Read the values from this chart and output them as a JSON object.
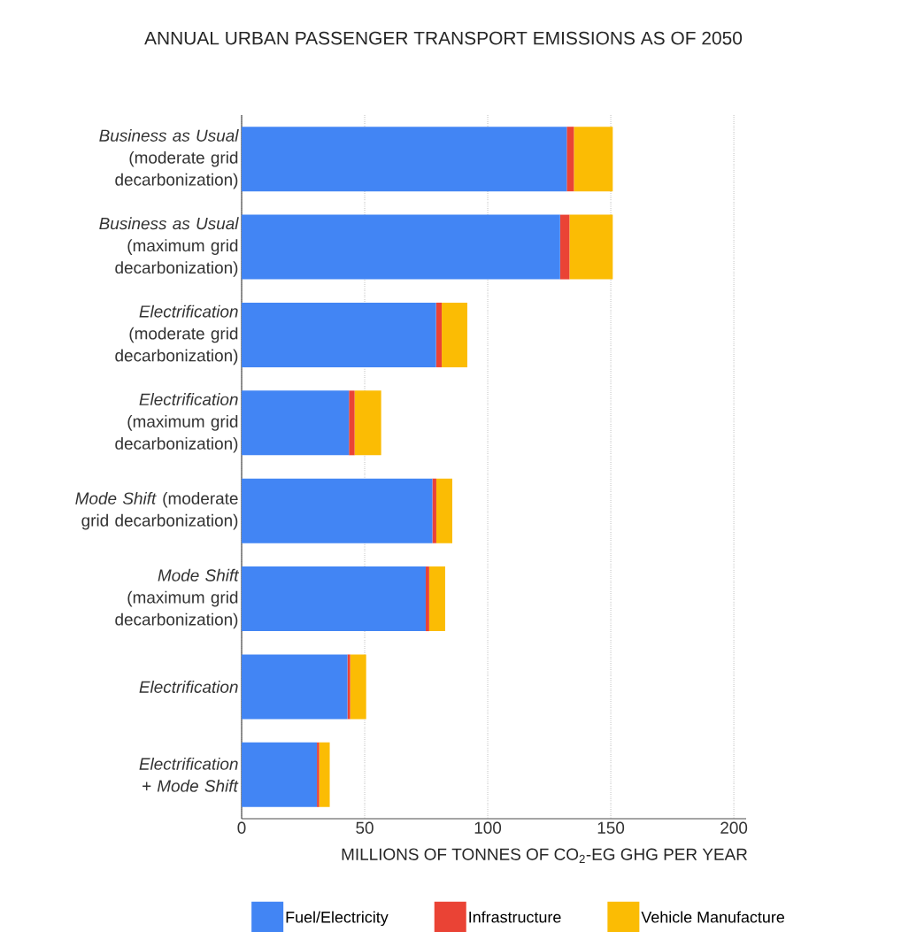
{
  "chart_data": {
    "type": "bar",
    "orientation": "horizontal",
    "stacked": true,
    "title": "ANNUAL URBAN PASSENGER TRANSPORT EMISSIONS AS OF 2050",
    "xlabel": "MILLIONS OF TONNES OF CO$_{2}$-EG GHG PER YEAR",
    "categories": [
      "*Business as Usual* (moderate grid decarbonization)",
      "*Business as Usual* (maximum grid decarbonization)",
      "*Electrification* (moderate grid decarbonization)",
      "*Electrification* (maximum grid decarbonization)",
      "*Mode Shift* (moderate grid decarbonization)",
      "*Mode Shift* (maximum grid decarbonization)",
      "*Electrification*",
      "*Electrification + Mode Shift*"
    ],
    "series": [
      {
        "name": "Fuel/Electricity",
        "color": "#4285f4",
        "values": [
          132.1,
          129.4,
          79.0,
          43.6,
          77.5,
          74.8,
          43.0,
          30.6
        ]
      },
      {
        "name": "Infrastructure",
        "color": "#ea4335",
        "values": [
          2.9,
          3.8,
          2.3,
          2.3,
          1.6,
          1.4,
          1.1,
          0.9
        ]
      },
      {
        "name": "Vehicle Manufacture",
        "color": "#fbbc04",
        "values": [
          15.8,
          17.6,
          10.4,
          10.8,
          6.5,
          6.5,
          6.5,
          4.3
        ]
      }
    ],
    "xlim": [
      0,
      205
    ],
    "xticks": [
      0,
      50,
      100,
      150,
      200
    ],
    "grid": "x",
    "legend": "bottom"
  }
}
